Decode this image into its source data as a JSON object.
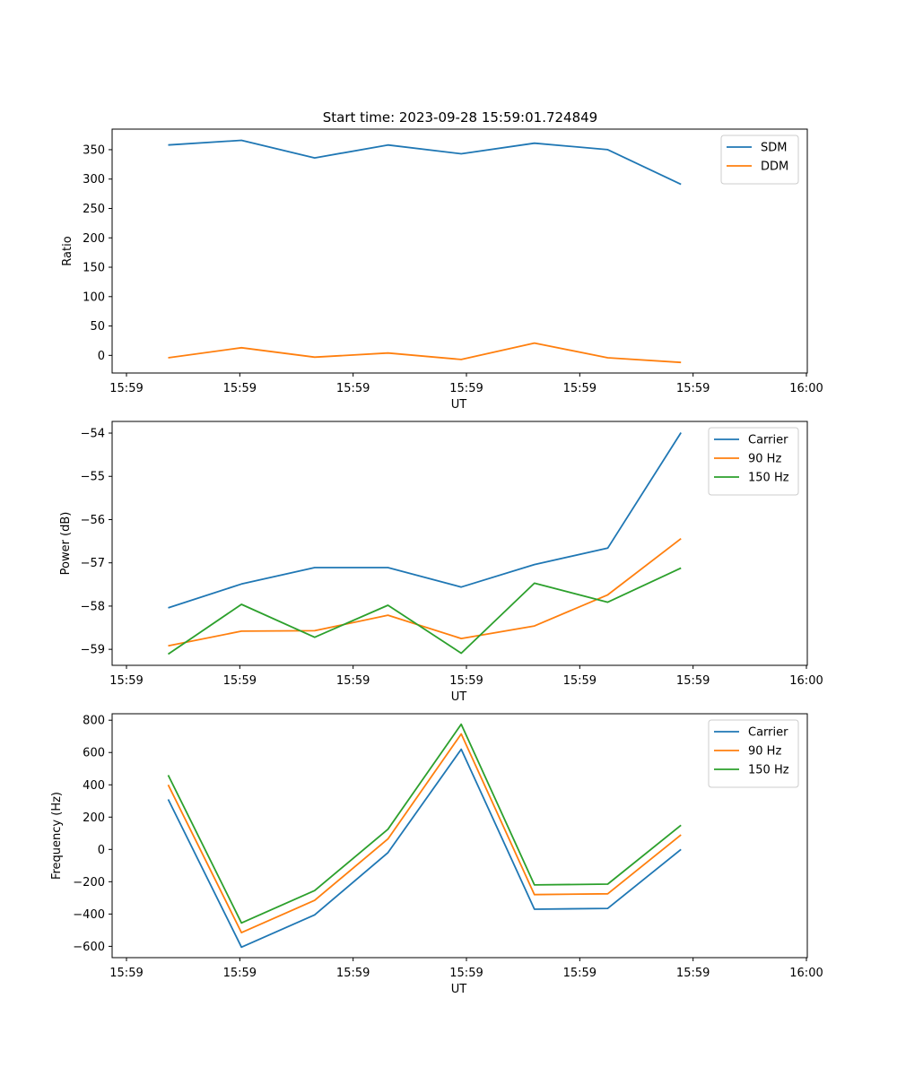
{
  "figure_title": "Start time: 2023-09-28 15:59:01.724849",
  "colors": {
    "c0": "#1f77b4",
    "c1": "#ff7f0e",
    "c2": "#2ca02c"
  },
  "chart_data": [
    {
      "type": "line",
      "title": "Start time: 2023-09-28 15:59:01.724849",
      "xlabel": "UT",
      "ylabel": "Ratio",
      "x_ticks": [
        "15:59",
        "15:59",
        "15:59",
        "15:59",
        "15:59",
        "15:59",
        "16:00"
      ],
      "y_ticks": [
        0,
        50,
        100,
        150,
        200,
        250,
        300,
        350
      ],
      "ylim": [
        -30,
        385
      ],
      "xlim": [
        -0.2,
        9.1
      ],
      "x": [
        0.55,
        1.53,
        2.51,
        3.49,
        4.47,
        5.45,
        6.43,
        7.41
      ],
      "series": [
        {
          "name": "SDM",
          "color": "#1f77b4",
          "values": [
            358,
            366,
            336,
            358,
            343,
            361,
            350,
            291
          ]
        },
        {
          "name": "DDM",
          "color": "#ff7f0e",
          "values": [
            -4,
            13,
            -3,
            4,
            -7,
            21,
            -4,
            -12
          ]
        }
      ],
      "legend": "top-right"
    },
    {
      "type": "line",
      "xlabel": "UT",
      "ylabel": "Power (dB)",
      "x_ticks": [
        "15:59",
        "15:59",
        "15:59",
        "15:59",
        "15:59",
        "15:59",
        "16:00"
      ],
      "y_ticks": [
        -59,
        -58,
        -57,
        -56,
        -55,
        -54
      ],
      "ylim": [
        -59.37,
        -53.73
      ],
      "xlim": [
        -0.2,
        9.1
      ],
      "x": [
        0.55,
        1.53,
        2.51,
        3.49,
        4.47,
        5.45,
        6.43,
        7.41
      ],
      "series": [
        {
          "name": "Carrier",
          "color": "#1f77b4",
          "values": [
            -58.04,
            -57.49,
            -57.11,
            -57.11,
            -57.56,
            -57.04,
            -56.66,
            -53.99
          ]
        },
        {
          "name": "90 Hz",
          "color": "#ff7f0e",
          "values": [
            -58.92,
            -58.58,
            -58.57,
            -58.21,
            -58.75,
            -58.46,
            -57.74,
            -56.44
          ]
        },
        {
          "name": "150 Hz",
          "color": "#2ca02c",
          "values": [
            -59.11,
            -57.96,
            -58.72,
            -57.98,
            -59.09,
            -57.47,
            -57.91,
            -57.12
          ]
        }
      ],
      "legend": "top-right"
    },
    {
      "type": "line",
      "xlabel": "UT",
      "ylabel": "Frequency (Hz)",
      "x_ticks": [
        "15:59",
        "15:59",
        "15:59",
        "15:59",
        "15:59",
        "15:59",
        "16:00"
      ],
      "y_ticks": [
        -600,
        -400,
        -200,
        0,
        200,
        400,
        600,
        800
      ],
      "ylim": [
        -670,
        840
      ],
      "xlim": [
        -0.2,
        9.1
      ],
      "x": [
        0.55,
        1.53,
        2.51,
        3.49,
        4.47,
        5.45,
        6.43,
        7.41
      ],
      "series": [
        {
          "name": "Carrier",
          "color": "#1f77b4",
          "values": [
            310,
            -605,
            -405,
            -20,
            620,
            -370,
            -365,
            0
          ]
        },
        {
          "name": "90 Hz",
          "color": "#ff7f0e",
          "values": [
            400,
            -515,
            -315,
            65,
            715,
            -280,
            -275,
            90
          ]
        },
        {
          "name": "150 Hz",
          "color": "#2ca02c",
          "values": [
            460,
            -455,
            -255,
            125,
            775,
            -220,
            -215,
            150
          ]
        }
      ],
      "legend": "top-right"
    }
  ]
}
